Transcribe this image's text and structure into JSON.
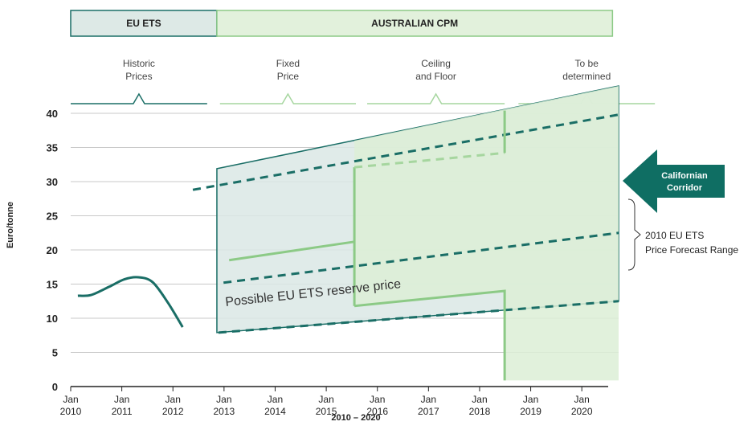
{
  "chart_data": {
    "type": "line",
    "headers": [
      {
        "text": "EU ETS",
        "x": [
          2010,
          2012.86
        ],
        "fill": "#dde9e6",
        "color": "#1a6e66"
      },
      {
        "text": "AUSTRALIAN CPM",
        "x": [
          2012.86,
          2020.6
        ],
        "fill": "#e2f1dc",
        "color": "#8cca86"
      }
    ],
    "periods": [
      {
        "lines": [
          "Historic",
          "Prices"
        ],
        "x": [
          2010,
          2012.67
        ],
        "color": "#1a6e66"
      },
      {
        "lines": [
          "Fixed",
          "Price"
        ],
        "x": [
          2012.92,
          2015.58
        ],
        "color": "#a6d69f"
      },
      {
        "lines": [
          "Ceiling",
          "and Floor"
        ],
        "x": [
          2015.8,
          2018.49
        ],
        "color": "#a6d69f"
      },
      {
        "lines": [
          "To be",
          "determined"
        ],
        "x": [
          2018.76,
          2021.43
        ],
        "color": "#a6d69f"
      }
    ],
    "y_label": "Euro/tonne",
    "x_label": "2010 – 2020",
    "xlim": [
      2010,
      2020.72
    ],
    "ylim": [
      0,
      40
    ],
    "yticks": [
      0,
      5,
      10,
      15,
      20,
      25,
      30,
      35,
      40
    ],
    "xticks": [
      {
        "value": 2010,
        "label": "Jan 2010"
      },
      {
        "value": 2011,
        "label": "Jan 2011"
      },
      {
        "value": 2012,
        "label": "Jan 2012"
      },
      {
        "value": 2013,
        "label": "Jan 2013"
      },
      {
        "value": 2014,
        "label": "Jan 2014"
      },
      {
        "value": 2015,
        "label": "Jan 2015"
      },
      {
        "value": 2016,
        "label": "Jan 2016"
      },
      {
        "value": 2017,
        "label": "Jan 2017"
      },
      {
        "value": 2018,
        "label": "Jan 2018"
      },
      {
        "value": 2019,
        "label": "Jan 2019"
      },
      {
        "value": 2020,
        "label": "Jan 2020"
      }
    ],
    "grid": true,
    "series": [
      {
        "kind": "area",
        "color": "#1a6e66",
        "fill": "#dbe8e5",
        "x": [
          2012.86,
          2020.72,
          2020.72,
          2012.86
        ],
        "values": [
          31.9,
          44,
          12.5,
          7.9
        ]
      },
      {
        "kind": "area",
        "color": "none",
        "fill": "#dcefd6",
        "x": [
          2015.55,
          2018.49,
          2020.72,
          2020.72,
          2018.49,
          2018.49,
          2015.55
        ],
        "values": [
          36,
          40.6,
          44,
          0.9,
          0.9,
          14,
          12
        ]
      },
      {
        "kind": "line",
        "style": "dashed",
        "color": "#1a6e66",
        "x": [
          2012.39,
          2020.72
        ],
        "values": [
          28.8,
          39.8
        ]
      },
      {
        "kind": "line",
        "style": "dashed",
        "color": "#1a6e66",
        "x": [
          2012.99,
          2020.72
        ],
        "values": [
          15.2,
          22.5
        ]
      },
      {
        "kind": "line",
        "style": "dashed",
        "color": "#1a6e66",
        "x": [
          2012.89,
          2020.72
        ],
        "values": [
          7.9,
          12.5
        ]
      },
      {
        "kind": "line",
        "style": "solid",
        "color": "#8cca86",
        "x": [
          2013.1,
          2015.55
        ],
        "values": [
          18.5,
          21.2
        ]
      },
      {
        "kind": "line",
        "style": "solid",
        "color": "#8cca86",
        "x": [
          2015.55,
          2015.55
        ],
        "values": [
          11.8,
          32.1
        ]
      },
      {
        "kind": "line",
        "style": "dashed",
        "color": "#a6d69f",
        "x": [
          2015.55,
          2018.49
        ],
        "values": [
          32.1,
          34.2
        ]
      },
      {
        "kind": "line",
        "style": "solid",
        "color": "#8cca86",
        "x": [
          2018.49,
          2018.49
        ],
        "values": [
          34.2,
          40.4
        ]
      },
      {
        "kind": "line",
        "style": "solid",
        "color": "#8cca86",
        "x": [
          2015.55,
          2018.49,
          2018.49
        ],
        "values": [
          11.8,
          14,
          0.9
        ]
      },
      {
        "kind": "curve",
        "style": "solid",
        "color": "#1a6e66",
        "x": [
          2010.14,
          2010.4,
          2010.75,
          2011.05,
          2011.32,
          2011.6,
          2011.9,
          2012.19
        ],
        "values": [
          13.3,
          13.4,
          14.6,
          15.7,
          16.0,
          15.3,
          12.3,
          8.7
        ]
      }
    ],
    "annotations": {
      "reserve": "Possible EU ETS reserve price",
      "forecast": [
        "2010 EU ETS",
        "Price Forecast Range"
      ],
      "corridor": [
        "Californian",
        "Corridor"
      ]
    }
  }
}
